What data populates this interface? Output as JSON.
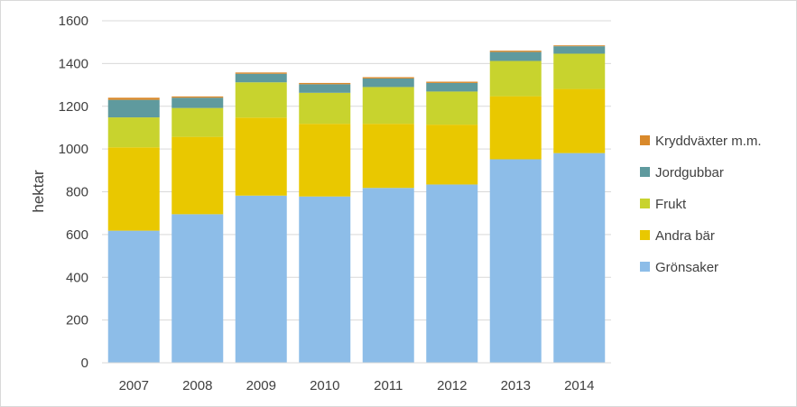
{
  "chart_data": {
    "type": "bar",
    "stacked": true,
    "title": "",
    "xlabel": "",
    "ylabel": "hektar",
    "ylim": [
      0,
      1600
    ],
    "yticks": [
      0,
      200,
      400,
      600,
      800,
      1000,
      1200,
      1400,
      1600
    ],
    "grid": true,
    "legend_position": "right",
    "categories": [
      "2007",
      "2008",
      "2009",
      "2010",
      "2011",
      "2012",
      "2013",
      "2014"
    ],
    "series": [
      {
        "name": "Grönsaker",
        "color": "#8dbde8",
        "values": [
          618,
          695,
          782,
          778,
          818,
          834,
          952,
          981
        ]
      },
      {
        "name": "Andra bär",
        "color": "#e9c800",
        "values": [
          390,
          362,
          365,
          340,
          300,
          280,
          295,
          300
        ]
      },
      {
        "name": "Frukt",
        "color": "#c8d32e",
        "values": [
          140,
          135,
          165,
          145,
          172,
          155,
          165,
          165
        ]
      },
      {
        "name": "Jordgubbar",
        "color": "#5f9a9e",
        "values": [
          82,
          48,
          40,
          40,
          40,
          40,
          42,
          35
        ]
      },
      {
        "name": "Kryddväxter m.m.",
        "color": "#d9892b",
        "values": [
          10,
          6,
          6,
          6,
          6,
          6,
          6,
          4
        ]
      }
    ]
  }
}
